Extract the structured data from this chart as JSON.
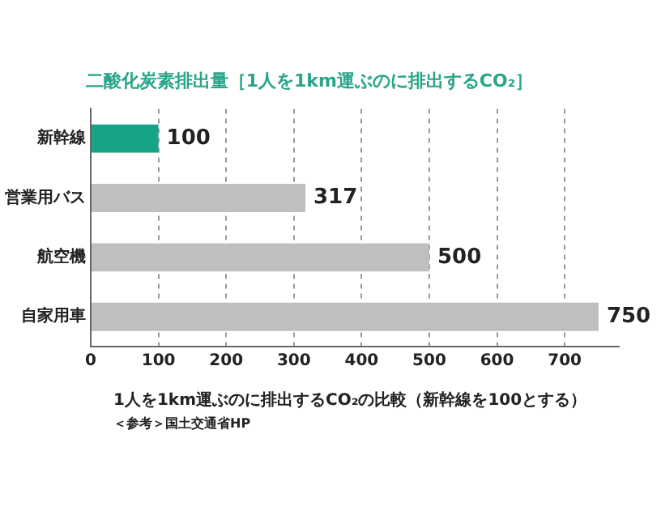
{
  "chart_data": {
    "type": "bar",
    "orientation": "horizontal",
    "title": "二酸化炭素排出量［1人を1km運ぶのに排出するCO₂］",
    "categories": [
      "新幹線",
      "営業用バス",
      "航空機",
      "自家用車"
    ],
    "values": [
      100,
      317,
      500,
      750
    ],
    "colors": [
      "#17a386",
      "#bfbfbf",
      "#bfbfbf",
      "#bfbfbf"
    ],
    "xlim": [
      0,
      780
    ],
    "xticks": [
      0,
      100,
      200,
      300,
      400,
      500,
      600,
      700
    ],
    "grid": "x",
    "data_labels": true,
    "legend": false,
    "annotations": [
      "1人を1km運ぶのに排出するCO₂の比較（新幹線を100とする）",
      "＜参考＞国土交通省HP"
    ]
  }
}
